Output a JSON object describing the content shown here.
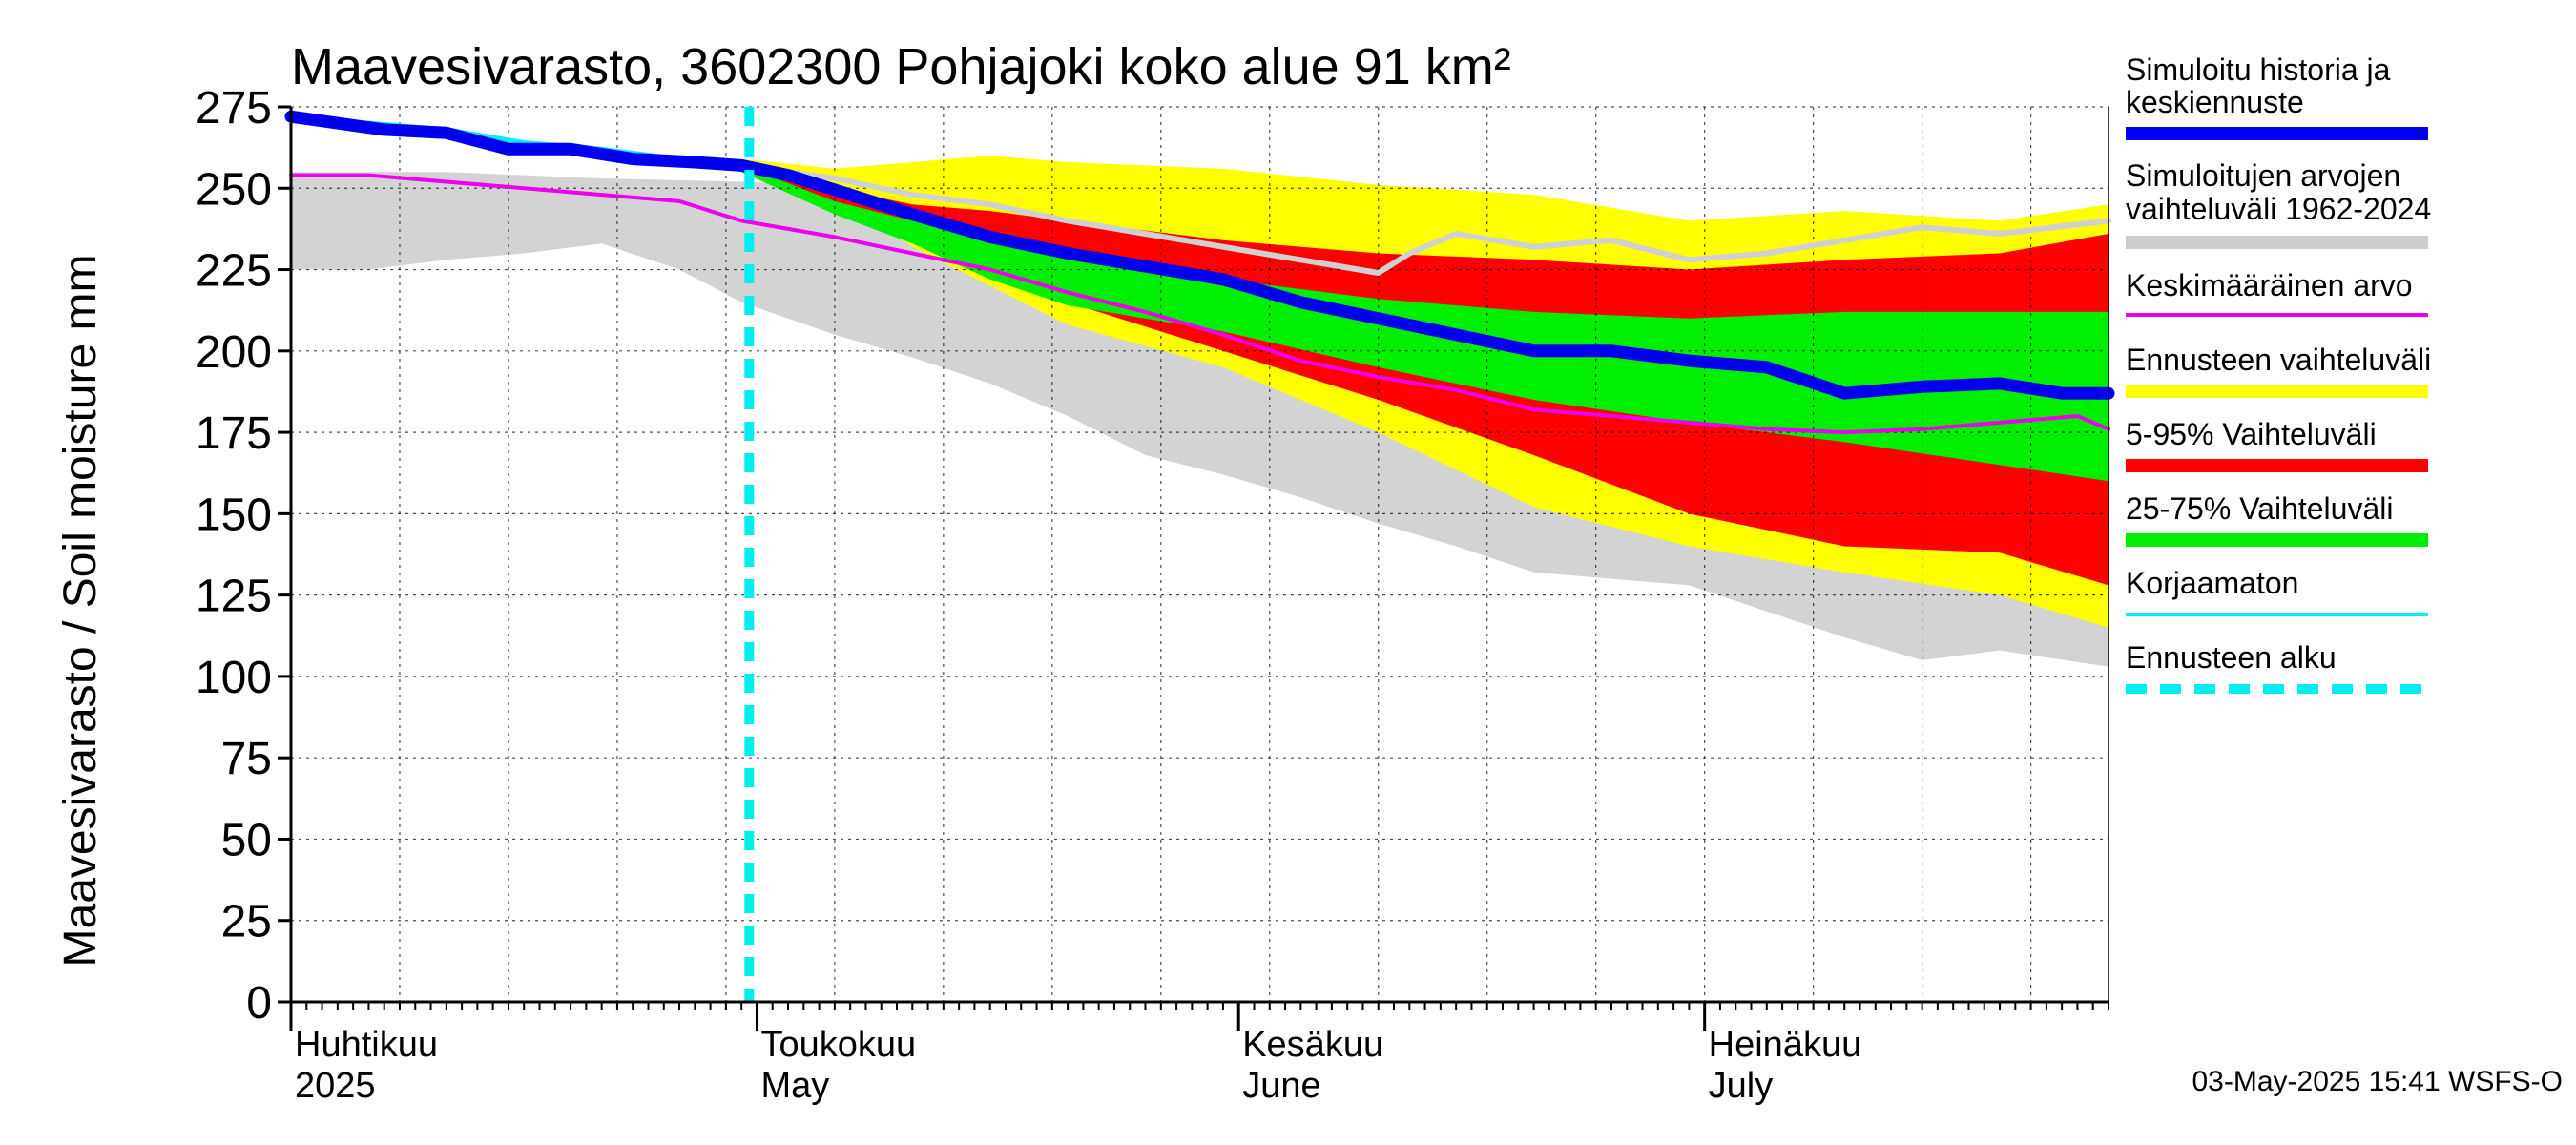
{
  "chart_data": {
    "type": "area",
    "title": "Maavesivarasto, 3602300 Pohjajoki koko alue 91 km²",
    "ylabel": "Maavesivarasto / Soil moisture   mm",
    "xlabel": "",
    "ylim": [
      0,
      275
    ],
    "yticks": [
      0,
      25,
      50,
      75,
      100,
      125,
      150,
      175,
      200,
      225,
      250,
      275
    ],
    "ytick_labels": [
      "0",
      "25",
      "50",
      "75",
      "100",
      "125",
      "150",
      "175",
      "200",
      "225",
      "250",
      "275"
    ],
    "xlim_days": [
      0,
      117
    ],
    "months": [
      {
        "day": 0,
        "fi": "Huhtikuu",
        "en": "2025"
      },
      {
        "day": 30,
        "fi": "Toukokuu",
        "en": "May"
      },
      {
        "day": 61,
        "fi": "Kesäkuu",
        "en": "June"
      },
      {
        "day": 91,
        "fi": "Heinäkuu",
        "en": "July"
      }
    ],
    "forecast_start_day": 29.5,
    "series": [
      {
        "name": "hist_range_upper",
        "x": [
          0,
          10,
          20,
          29,
          40,
          50,
          60,
          70,
          80,
          90,
          100,
          110,
          117
        ],
        "values": [
          255,
          255,
          253,
          252,
          250,
          247,
          245,
          243,
          240,
          238,
          236,
          240,
          240
        ]
      },
      {
        "name": "hist_range_lower",
        "x": [
          0,
          5,
          10,
          15,
          20,
          25,
          29,
          35,
          40,
          45,
          50,
          55,
          60,
          65,
          70,
          75,
          80,
          85,
          90,
          95,
          100,
          105,
          110,
          117
        ],
        "values": [
          225,
          225,
          228,
          230,
          233,
          225,
          215,
          205,
          198,
          190,
          180,
          168,
          162,
          155,
          147,
          140,
          132,
          130,
          128,
          120,
          112,
          105,
          108,
          103
        ]
      },
      {
        "name": "forecast_range_upper",
        "x": [
          29,
          35,
          40,
          45,
          50,
          60,
          70,
          80,
          90,
          100,
          110,
          117
        ],
        "values": [
          259,
          256,
          258,
          260,
          258,
          256,
          251,
          248,
          240,
          243,
          240,
          245
        ]
      },
      {
        "name": "forecast_range_lower",
        "x": [
          29,
          35,
          40,
          45,
          50,
          60,
          70,
          80,
          90,
          100,
          110,
          117
        ],
        "values": [
          258,
          248,
          232,
          220,
          208,
          195,
          175,
          152,
          140,
          132,
          125,
          115
        ]
      },
      {
        "name": "p5_95_upper",
        "x": [
          29,
          35,
          40,
          45,
          50,
          60,
          70,
          80,
          90,
          100,
          110,
          117
        ],
        "values": [
          258,
          250,
          245,
          243,
          240,
          234,
          230,
          228,
          225,
          228,
          230,
          236
        ]
      },
      {
        "name": "p5_95_lower",
        "x": [
          29,
          35,
          40,
          45,
          50,
          60,
          70,
          80,
          90,
          100,
          110,
          117
        ],
        "values": [
          256,
          245,
          235,
          225,
          215,
          200,
          185,
          168,
          150,
          140,
          138,
          128
        ]
      },
      {
        "name": "p25_75_upper",
        "x": [
          29,
          35,
          40,
          45,
          50,
          60,
          70,
          80,
          90,
          100,
          110,
          117
        ],
        "values": [
          257,
          246,
          240,
          235,
          230,
          222,
          216,
          212,
          210,
          212,
          212,
          212
        ]
      },
      {
        "name": "p25_75_lower",
        "x": [
          29,
          35,
          40,
          45,
          50,
          60,
          70,
          80,
          90,
          100,
          110,
          117
        ],
        "values": [
          255,
          242,
          233,
          222,
          214,
          206,
          195,
          185,
          178,
          172,
          165,
          160
        ]
      },
      {
        "name": "simuloitu_historia_ja_keskiennuste",
        "x": [
          0,
          3,
          6,
          10,
          14,
          18,
          22,
          26,
          29,
          32,
          36,
          40,
          45,
          50,
          55,
          60,
          65,
          70,
          75,
          80,
          85,
          90,
          95,
          100,
          105,
          110,
          114,
          117
        ],
        "values": [
          272,
          270,
          268,
          267,
          262,
          262,
          259,
          258,
          257,
          254,
          248,
          242,
          235,
          230,
          226,
          222,
          215,
          210,
          205,
          200,
          200,
          197,
          195,
          187,
          189,
          190,
          187,
          187
        ]
      },
      {
        "name": "keskimaarainen_arvo",
        "x": [
          0,
          5,
          10,
          15,
          20,
          25,
          29,
          35,
          40,
          45,
          50,
          55,
          60,
          65,
          70,
          75,
          80,
          85,
          90,
          95,
          100,
          105,
          110,
          115,
          117
        ],
        "values": [
          254,
          254,
          252,
          250,
          248,
          246,
          240,
          235,
          230,
          225,
          218,
          212,
          205,
          197,
          192,
          188,
          182,
          180,
          178,
          176,
          175,
          176,
          178,
          180,
          176
        ]
      },
      {
        "name": "korjaamaton",
        "x": [
          0,
          5,
          10,
          15,
          20,
          25,
          29
        ],
        "values": [
          272,
          270,
          268,
          264,
          262,
          259,
          257
        ]
      },
      {
        "name": "simuloitu_keskiennuste_harmaa",
        "x": [
          29,
          35,
          40,
          45,
          50,
          55,
          60,
          65,
          70,
          72,
          75,
          80,
          85,
          90,
          95,
          100,
          105,
          110,
          117
        ],
        "values": [
          257,
          253,
          248,
          245,
          240,
          236,
          232,
          228,
          224,
          230,
          236,
          232,
          234,
          228,
          230,
          234,
          238,
          236,
          240
        ]
      }
    ],
    "legend": [
      {
        "label": "Simuloitu historia ja keskiennuste",
        "color": "#0000ee"
      },
      {
        "label": "Simuloitujen arvojen vaihteluväli 1962-2024",
        "color": "#cccccc"
      },
      {
        "label": "Keskimääräinen arvo",
        "color": "#ee00ee"
      },
      {
        "label": "Ennusteen vaihteluväli",
        "color": "#ffff00"
      },
      {
        "label": "5-95% Vaihteluväli",
        "color": "#ff0000"
      },
      {
        "label": "25-75% Vaihteluväli",
        "color": "#00ee00"
      },
      {
        "label": "Korjaamaton",
        "color": "#00eeff"
      },
      {
        "label": "Ennusteen alku",
        "color": "#00eeee"
      }
    ],
    "legend_position": "right",
    "grid": true
  },
  "legend_texts": {
    "l1a": "Simuloitu historia ja",
    "l1b": "keskiennuste",
    "l2a": "Simuloitujen arvojen",
    "l2b": "vaihteluväli 1962-2024",
    "l3": "Keskimääräinen arvo",
    "l4": "Ennusteen vaihteluväli",
    "l5": "5-95% Vaihteluväli",
    "l6": "25-75% Vaihteluväli",
    "l7": "Korjaamaton",
    "l8": "Ennusteen alku"
  },
  "footer": "03-May-2025 15:41 WSFS-O"
}
